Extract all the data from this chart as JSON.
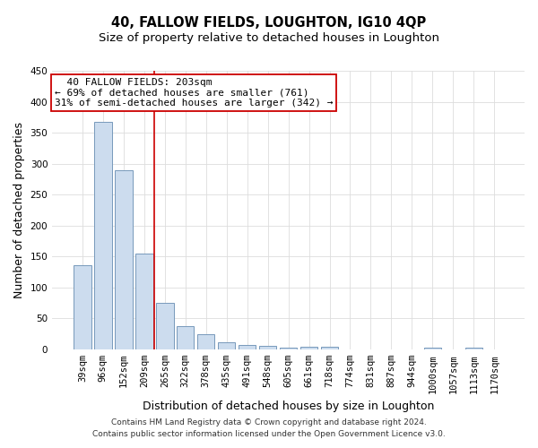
{
  "title": "40, FALLOW FIELDS, LOUGHTON, IG10 4QP",
  "subtitle": "Size of property relative to detached houses in Loughton",
  "xlabel": "Distribution of detached houses by size in Loughton",
  "ylabel": "Number of detached properties",
  "categories": [
    "39sqm",
    "96sqm",
    "152sqm",
    "209sqm",
    "265sqm",
    "322sqm",
    "378sqm",
    "435sqm",
    "491sqm",
    "548sqm",
    "605sqm",
    "661sqm",
    "718sqm",
    "774sqm",
    "831sqm",
    "887sqm",
    "944sqm",
    "1000sqm",
    "1057sqm",
    "1113sqm",
    "1170sqm"
  ],
  "values": [
    136,
    368,
    289,
    155,
    75,
    38,
    25,
    11,
    8,
    6,
    3,
    4,
    4,
    0,
    0,
    0,
    0,
    3,
    0,
    3,
    0
  ],
  "bar_color": "#ccdcee",
  "bar_edge_color": "#7799bb",
  "vline_x": 3.5,
  "vline_color": "#cc0000",
  "annotation_line1": "  40 FALLOW FIELDS: 203sqm",
  "annotation_line2": "← 69% of detached houses are smaller (761)",
  "annotation_line3": "31% of semi-detached houses are larger (342) →",
  "annotation_box_color": "#ffffff",
  "annotation_box_edge": "#cc0000",
  "ylim": [
    0,
    450
  ],
  "yticks": [
    0,
    50,
    100,
    150,
    200,
    250,
    300,
    350,
    400,
    450
  ],
  "footer_line1": "Contains HM Land Registry data © Crown copyright and database right 2024.",
  "footer_line2": "Contains public sector information licensed under the Open Government Licence v3.0.",
  "bg_color": "#ffffff",
  "plot_bg_color": "#ffffff",
  "grid_color": "#dddddd",
  "title_fontsize": 10.5,
  "subtitle_fontsize": 9.5,
  "axis_label_fontsize": 9,
  "tick_fontsize": 7.5,
  "footer_fontsize": 6.5,
  "annotation_fontsize": 8
}
